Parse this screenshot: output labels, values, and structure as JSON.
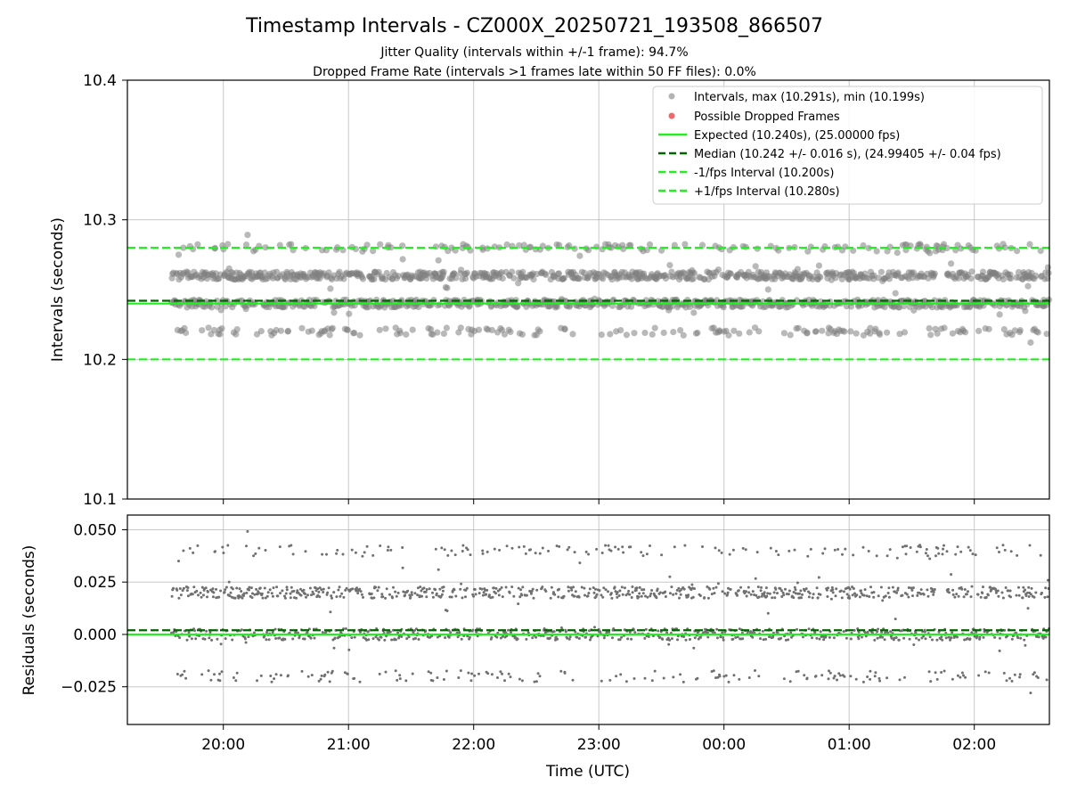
{
  "chart_data": {
    "type": "scatter",
    "title": "Timestamp Intervals - CZ000X_20250721_193508_866507",
    "subtitle_lines": [
      "Jitter Quality (intervals within +/-1 frame): 94.7%",
      "Dropped Frame Rate (intervals >1 frames late within 50 FF files): 0.0%"
    ],
    "xlabel": "Time (UTC)",
    "x_ticks": [
      "20:00",
      "21:00",
      "22:00",
      "23:00",
      "00:00",
      "01:00",
      "02:00"
    ],
    "x_range": [
      "2025-07-21T19:14:00Z",
      "2025-07-22T02:36:00Z"
    ],
    "data_time_range": [
      "2025-07-21T19:35:00Z",
      "2025-07-22T02:36:00Z"
    ],
    "grid": true,
    "top_panel": {
      "ylabel": "Intervals (seconds)",
      "ylim": [
        10.1,
        10.4
      ],
      "y_ticks": [
        "10.1",
        "10.2",
        "10.3",
        "10.4"
      ],
      "legend_position": "top-right",
      "series": [
        {
          "name": "Intervals, max (10.291s), min (10.199s)",
          "kind": "points",
          "color": "#808080",
          "levels": [
            {
              "value": 10.22,
              "weight": 0.1
            },
            {
              "value": 10.24,
              "weight": 0.42
            },
            {
              "value": 10.26,
              "weight": 0.4
            },
            {
              "value": 10.28,
              "weight": 0.08
            }
          ],
          "max": 10.291,
          "min": 10.199
        },
        {
          "name": "Possible Dropped Frames",
          "kind": "points",
          "color": "#e8434a",
          "count": 0
        },
        {
          "name": "Expected (10.240s), (25.00000 fps)",
          "kind": "hline",
          "value": 10.24,
          "style": "solid",
          "color": "#22ee22"
        },
        {
          "name": "Median (10.242 +/- 0.016 s), (24.99405 +/- 0.04 fps)",
          "kind": "hline",
          "value": 10.242,
          "style": "dashed",
          "color": "#006400"
        },
        {
          "name": "-1/fps Interval (10.200s)",
          "kind": "hline",
          "value": 10.2,
          "style": "dashed",
          "color": "#22ee22"
        },
        {
          "name": "+1/fps Interval (10.280s)",
          "kind": "hline",
          "value": 10.28,
          "style": "dashed",
          "color": "#22ee22"
        }
      ]
    },
    "bottom_panel": {
      "ylabel": "Residuals (seconds)",
      "ylim": [
        -0.043,
        0.057
      ],
      "y_ticks": [
        "−0.025",
        "0.000",
        "0.025",
        "0.050"
      ],
      "y_tick_values": [
        -0.025,
        0.0,
        0.025,
        0.05
      ],
      "series": [
        {
          "kind": "points",
          "color": "#707070",
          "levels": [
            -0.02,
            0.0,
            0.02,
            0.04
          ],
          "weights": [
            0.1,
            0.42,
            0.4,
            0.08
          ]
        },
        {
          "kind": "hline",
          "value": 0.002,
          "style": "dashed",
          "color": "#006400"
        },
        {
          "kind": "hline",
          "value": 0.0,
          "style": "solid",
          "color": "#22ee22"
        }
      ]
    }
  }
}
